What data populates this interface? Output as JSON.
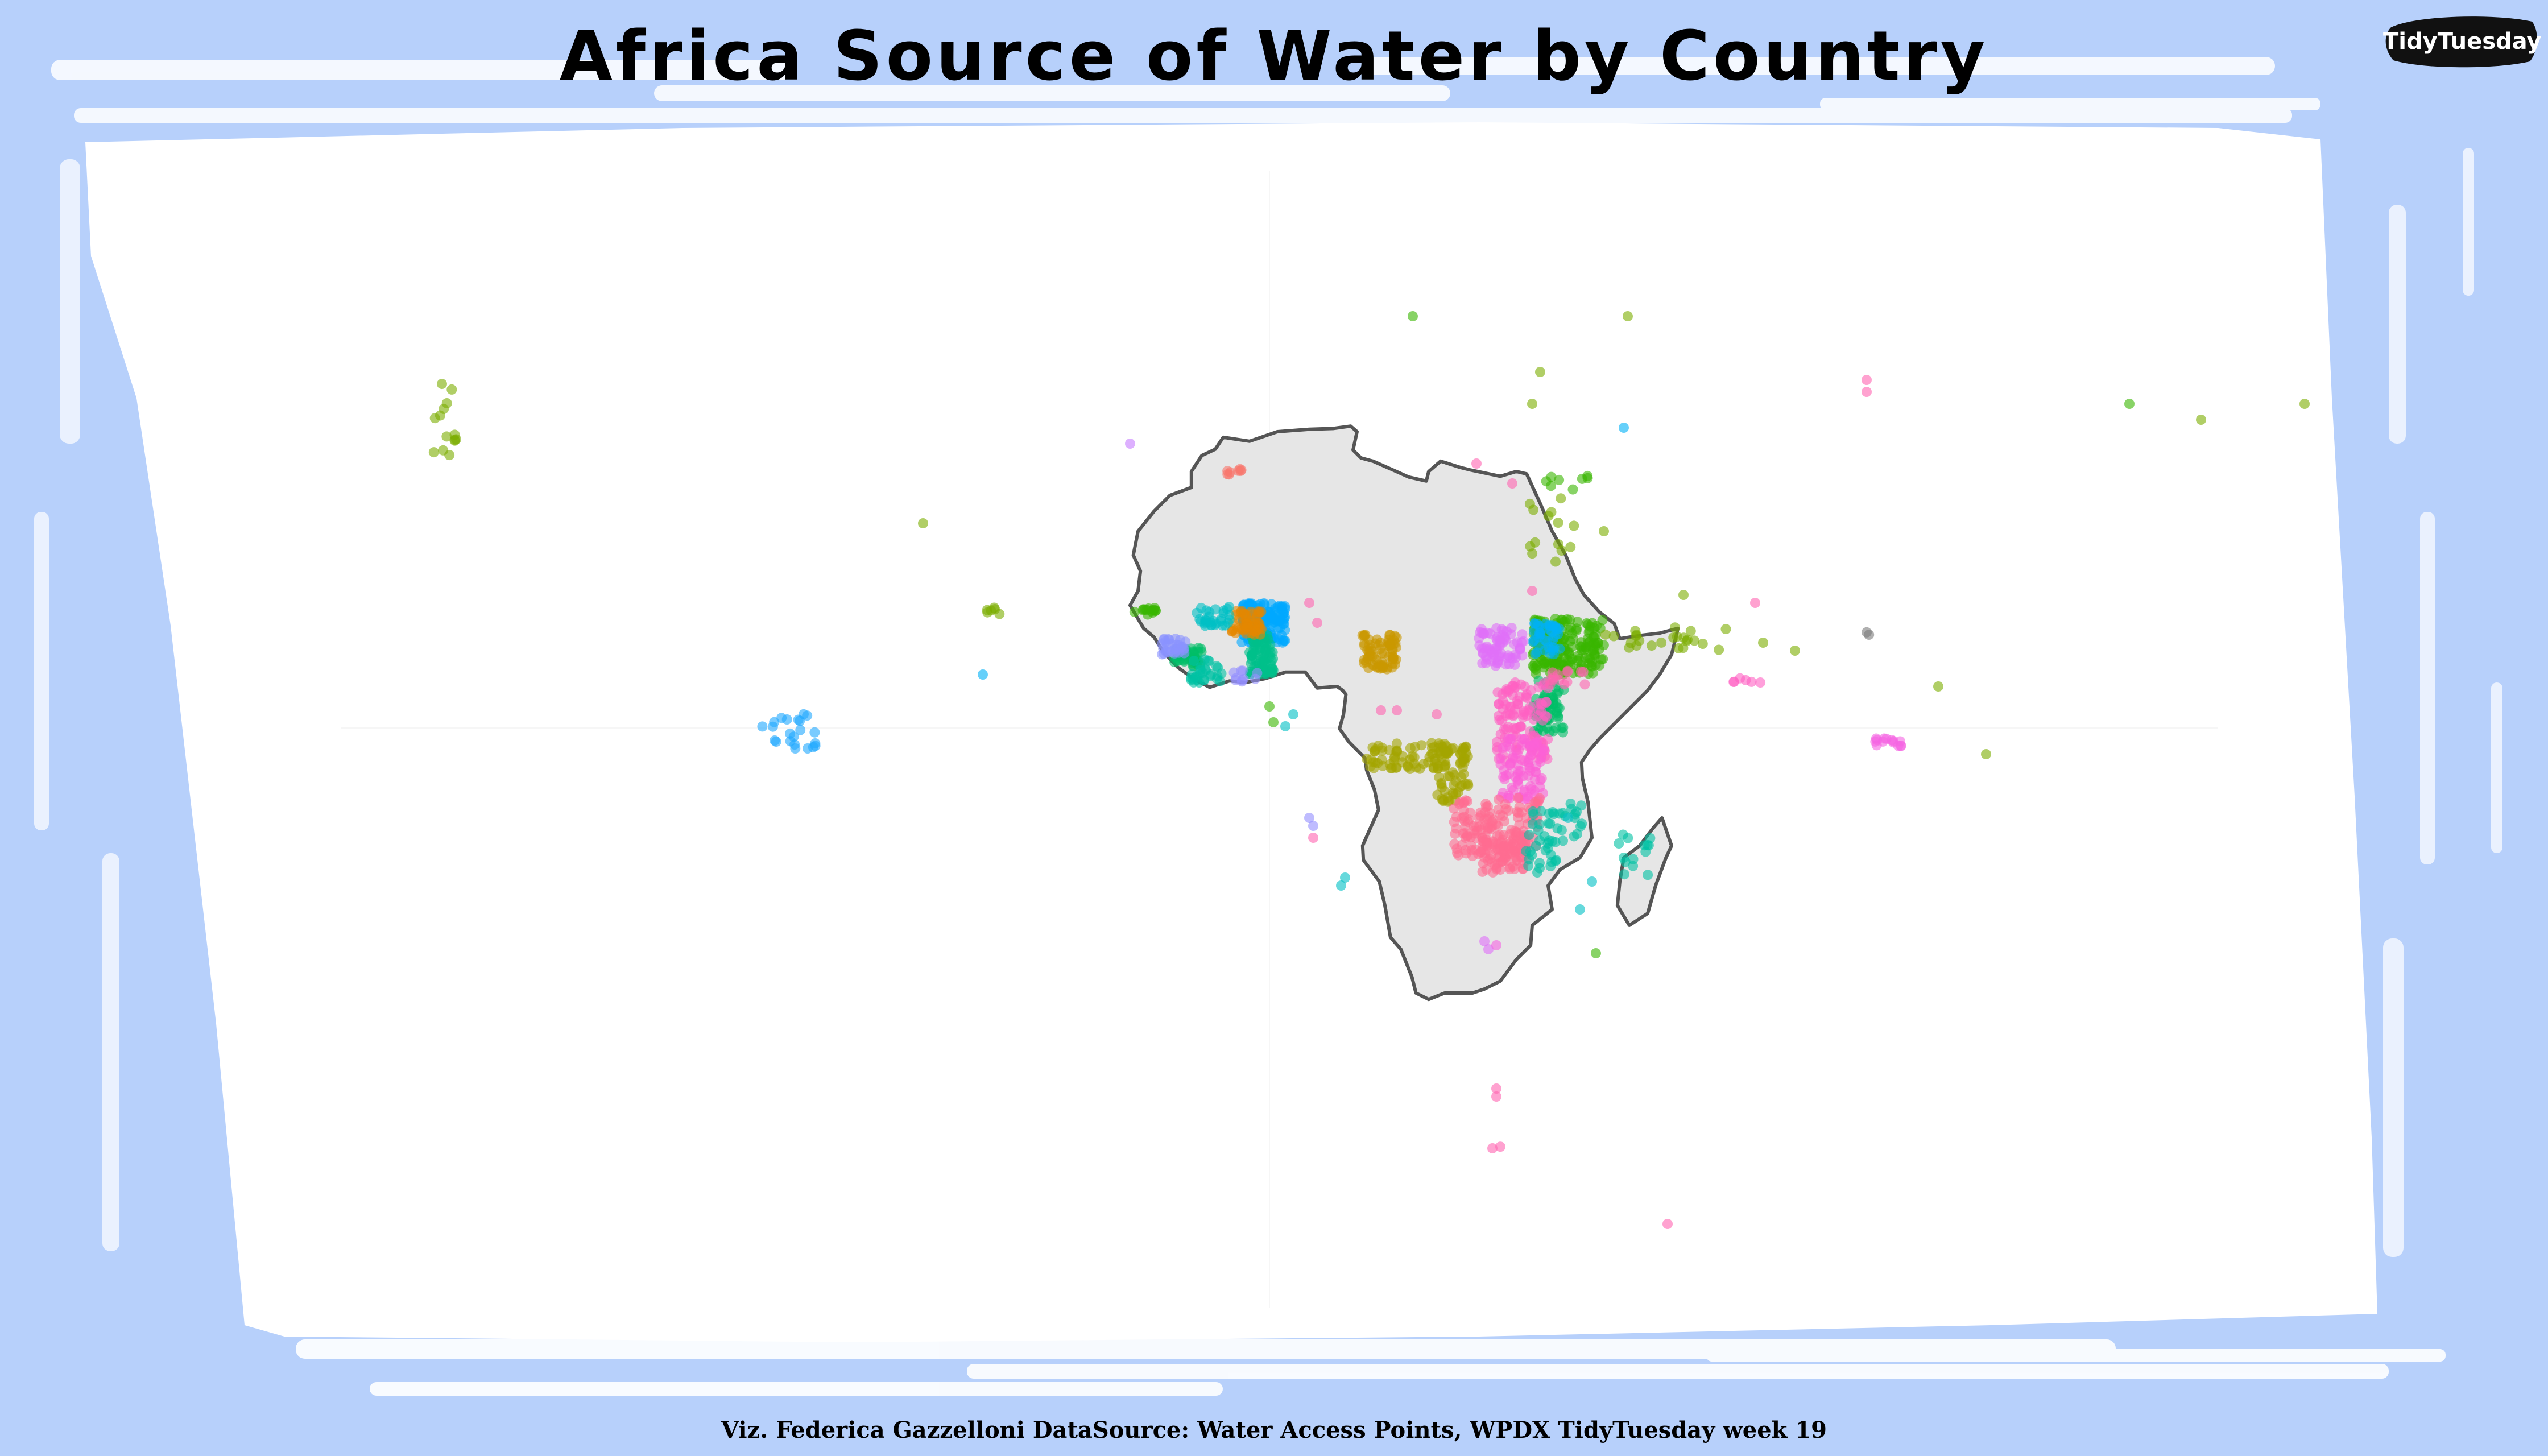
{
  "title": "Africa Source of Water by Country",
  "badge": {
    "label": "TidyTuesday"
  },
  "caption": "Viz. Federica Gazzelloni DataSource: Water Access Points, WPDX TidyTuesday week 19",
  "colors": {
    "page_background": "#b7d0fb",
    "map_panel": "#ffffff",
    "land_fill": "#e6e6e6",
    "land_outline": "#555555",
    "badge_fill": "#111111"
  },
  "chart_data": {
    "type": "scatter",
    "subject": "water access points in Africa colored by country",
    "extent": {
      "lon": [
        -110,
        150
      ],
      "lat": [
        -55,
        55
      ]
    },
    "continent_outline_lonlat": [
      [
        -17.1,
        21.0
      ],
      [
        -16.5,
        24.0
      ],
      [
        -14.5,
        26.5
      ],
      [
        -12.5,
        28.5
      ],
      [
        -9.8,
        29.5
      ],
      [
        -9.8,
        31.5
      ],
      [
        -8.5,
        33.5
      ],
      [
        -6.8,
        34.3
      ],
      [
        -5.8,
        35.8
      ],
      [
        -2.5,
        35.3
      ],
      [
        1.0,
        36.5
      ],
      [
        5.0,
        36.8
      ],
      [
        8.0,
        36.9
      ],
      [
        10.2,
        37.2
      ],
      [
        11.0,
        36.5
      ],
      [
        10.5,
        34.2
      ],
      [
        11.5,
        33.2
      ],
      [
        13.0,
        32.8
      ],
      [
        15.5,
        31.7
      ],
      [
        17.5,
        30.8
      ],
      [
        19.7,
        30.3
      ],
      [
        20.0,
        31.5
      ],
      [
        21.5,
        32.8
      ],
      [
        24.0,
        32.0
      ],
      [
        25.2,
        31.7
      ],
      [
        29.0,
        30.9
      ],
      [
        31.0,
        31.5
      ],
      [
        32.3,
        31.2
      ],
      [
        34.0,
        27.5
      ],
      [
        35.5,
        24.0
      ],
      [
        37.2,
        21.0
      ],
      [
        38.4,
        18.0
      ],
      [
        39.5,
        16.0
      ],
      [
        41.5,
        13.8
      ],
      [
        43.3,
        12.4
      ],
      [
        44.0,
        10.5
      ],
      [
        46.5,
        10.9
      ],
      [
        49.0,
        11.2
      ],
      [
        51.3,
        11.8
      ],
      [
        51.0,
        10.5
      ],
      [
        50.5,
        8.5
      ],
      [
        49.0,
        6.0
      ],
      [
        47.5,
        4.0
      ],
      [
        45.5,
        2.0
      ],
      [
        43.5,
        0.0
      ],
      [
        41.5,
        -2.0
      ],
      [
        40.2,
        -3.5
      ],
      [
        39.2,
        -5.0
      ],
      [
        39.3,
        -7.0
      ],
      [
        40.0,
        -10.0
      ],
      [
        40.5,
        -14.5
      ],
      [
        39.0,
        -17.0
      ],
      [
        36.5,
        -18.5
      ],
      [
        35.0,
        -20.5
      ],
      [
        35.5,
        -23.5
      ],
      [
        33.0,
        -25.5
      ],
      [
        32.8,
        -28.0
      ],
      [
        31.0,
        -29.8
      ],
      [
        29.0,
        -32.5
      ],
      [
        27.0,
        -33.5
      ],
      [
        25.5,
        -34.0
      ],
      [
        22.0,
        -34.0
      ],
      [
        20.0,
        -34.8
      ],
      [
        18.4,
        -34.0
      ],
      [
        17.9,
        -32.0
      ],
      [
        16.5,
        -28.5
      ],
      [
        15.2,
        -27.0
      ],
      [
        14.5,
        -23.0
      ],
      [
        13.8,
        -20.0
      ],
      [
        11.8,
        -17.3
      ],
      [
        11.7,
        -15.5
      ],
      [
        12.8,
        -13.0
      ],
      [
        13.7,
        -11.0
      ],
      [
        13.2,
        -8.5
      ],
      [
        12.2,
        -6.0
      ],
      [
        12.0,
        -4.5
      ],
      [
        10.0,
        -2.5
      ],
      [
        8.8,
        -0.8
      ],
      [
        9.3,
        1.0
      ],
      [
        9.6,
        3.5
      ],
      [
        9.2,
        4.0
      ],
      [
        8.5,
        4.5
      ],
      [
        6.0,
        4.3
      ],
      [
        4.5,
        6.3
      ],
      [
        2.0,
        6.3
      ],
      [
        -0.5,
        5.5
      ],
      [
        -3.0,
        5.0
      ],
      [
        -5.0,
        5.2
      ],
      [
        -7.5,
        4.4
      ],
      [
        -9.3,
        5.3
      ],
      [
        -11.5,
        6.9
      ],
      [
        -13.3,
        8.8
      ],
      [
        -14.5,
        10.7
      ],
      [
        -15.8,
        11.8
      ],
      [
        -16.8,
        13.5
      ],
      [
        -17.5,
        14.7
      ],
      [
        -16.5,
        16.5
      ],
      [
        -16.2,
        19.0
      ],
      [
        -17.1,
        21.0
      ]
    ],
    "madagascar_outline_lonlat": [
      [
        49.3,
        -12.0
      ],
      [
        50.5,
        -15.5
      ],
      [
        49.8,
        -17.0
      ],
      [
        48.5,
        -20.5
      ],
      [
        47.5,
        -24.0
      ],
      [
        45.2,
        -25.5
      ],
      [
        43.7,
        -23.0
      ],
      [
        44.0,
        -20.0
      ],
      [
        44.5,
        -17.0
      ],
      [
        46.5,
        -15.5
      ],
      [
        48.0,
        -13.5
      ],
      [
        49.3,
        -12.0
      ]
    ],
    "clusters": [
      {
        "country_color": "#00a9ff",
        "lon": [
          -3.5,
          2.0
        ],
        "lat": [
          10.0,
          15.0
        ],
        "n": 140
      },
      {
        "country_color": "#00c08b",
        "lon": [
          -2.5,
          0.5
        ],
        "lat": [
          6.0,
          11.0
        ],
        "n": 80
      },
      {
        "country_color": "#e58700",
        "lon": [
          -5.0,
          -1.0
        ],
        "lat": [
          11.0,
          14.0
        ],
        "n": 50
      },
      {
        "country_color": "#00be67",
        "lon": [
          -12.0,
          -8.5
        ],
        "lat": [
          7.0,
          9.5
        ],
        "n": 40
      },
      {
        "country_color": "#8b93ff",
        "lon": [
          -13.5,
          -10.5
        ],
        "lat": [
          8.5,
          10.5
        ],
        "n": 30
      },
      {
        "country_color": "#00bfc4",
        "lon": [
          -9.5,
          -5.0
        ],
        "lat": [
          12.0,
          14.5
        ],
        "n": 30
      },
      {
        "country_color": "#39b600",
        "lon": [
          -17.0,
          -14.0
        ],
        "lat": [
          13.5,
          14.5
        ],
        "n": 14
      },
      {
        "country_color": "#c99800",
        "lon": [
          11.5,
          16.0
        ],
        "lat": [
          6.5,
          11.0
        ],
        "n": 70
      },
      {
        "country_color": "#a3a500",
        "lon": [
          12.0,
          22.0
        ],
        "lat": [
          -6.0,
          -2.5
        ],
        "n": 60
      },
      {
        "country_color": "#a3a500",
        "lon": [
          21.0,
          25.0
        ],
        "lat": [
          -10.0,
          -3.0
        ],
        "n": 70
      },
      {
        "country_color": "#39b600",
        "lon": [
          33.0,
          42.0
        ],
        "lat": [
          6.0,
          13.0
        ],
        "n": 180
      },
      {
        "country_color": "#00b0f6",
        "lon": [
          33.0,
          36.5
        ],
        "lat": [
          8.5,
          12.5
        ],
        "n": 40
      },
      {
        "country_color": "#df70f8",
        "lon": [
          26.0,
          32.0
        ],
        "lat": [
          7.0,
          12.0
        ],
        "n": 70
      },
      {
        "country_color": "#00be67",
        "lon": [
          33.0,
          37.0
        ],
        "lat": [
          -1.5,
          5.5
        ],
        "n": 60
      },
      {
        "country_color": "#ff61c3",
        "lon": [
          28.5,
          35.0
        ],
        "lat": [
          -5.0,
          5.0
        ],
        "n": 110
      },
      {
        "country_color": "#fb61d7",
        "lon": [
          29.0,
          34.5
        ],
        "lat": [
          -10.0,
          -2.0
        ],
        "n": 80
      },
      {
        "country_color": "#ff6c91",
        "lon": [
          23.0,
          34.0
        ],
        "lat": [
          -17.0,
          -9.5
        ],
        "n": 150
      },
      {
        "country_color": "#ff6c91",
        "lon": [
          26.5,
          32.5
        ],
        "lat": [
          -19.0,
          -15.0
        ],
        "n": 60
      },
      {
        "country_color": "#00c1a3",
        "lon": [
          33.0,
          39.5
        ],
        "lat": [
          -15.0,
          -10.0
        ],
        "n": 30
      },
      {
        "country_color": "#00c1a3",
        "lon": [
          32.0,
          36.0
        ],
        "lat": [
          -19.0,
          -14.0
        ],
        "n": 20
      },
      {
        "country_color": "#00c1a3",
        "lon": [
          43.0,
          48.0
        ],
        "lat": [
          -20.0,
          -14.0
        ],
        "n": 14
      },
      {
        "country_color": "#00c1a3",
        "lon": [
          -10.0,
          -6.0
        ],
        "lat": [
          5.0,
          8.0
        ],
        "n": 30
      },
      {
        "country_color": "#9590ff",
        "lon": [
          -5.0,
          -1.5
        ],
        "lat": [
          5.0,
          6.5
        ],
        "n": 10
      },
      {
        "country_color": "#f8766d",
        "lon": [
          -5.5,
          -3.5
        ],
        "lat": [
          31.0,
          32.0
        ],
        "n": 8
      },
      {
        "country_color": "#1fa8ff",
        "lon": [
          -64.0,
          -57.0
        ],
        "lat": [
          -3.5,
          2.0
        ],
        "n": 22
      },
      {
        "country_color": "#7cae00",
        "lon": [
          -105.0,
          -102.0
        ],
        "lat": [
          33.0,
          43.0
        ],
        "n": 14
      },
      {
        "country_color": "#7cae00",
        "lon": [
          42.0,
          58.0
        ],
        "lat": [
          9.0,
          12.0
        ],
        "n": 24
      },
      {
        "country_color": "#7cae00",
        "lon": [
          32.0,
          40.0
        ],
        "lat": [
          20.0,
          29.0
        ],
        "n": 14
      },
      {
        "country_color": "#39b600",
        "lon": [
          34.5,
          40.0
        ],
        "lat": [
          29.0,
          31.0
        ],
        "n": 8
      },
      {
        "country_color": "#ff64b0",
        "lon": [
          35.0,
          40.0
        ],
        "lat": [
          4.5,
          6.5
        ],
        "n": 14
      },
      {
        "country_color": "#f564e3",
        "lon": [
          75.5,
          80.0
        ],
        "lat": [
          -3.0,
          -2.0
        ],
        "n": 14
      },
      {
        "country_color": "#ff61c3",
        "lon": [
          57.0,
          62.0
        ],
        "lat": [
          5.0,
          5.8
        ],
        "n": 6
      },
      {
        "country_color": "#7cae00",
        "lon": [
          -35.5,
          -33.5
        ],
        "lat": [
          13.5,
          14.5
        ],
        "n": 6
      }
    ],
    "outliers": [
      {
        "color": "#39b600",
        "lon": 18.0,
        "lat": 51.0
      },
      {
        "color": "#7cae00",
        "lon": 45.0,
        "lat": 51.0
      },
      {
        "color": "#7cae00",
        "lon": 34.0,
        "lat": 44.0
      },
      {
        "color": "#7cae00",
        "lon": 33.0,
        "lat": 40.0
      },
      {
        "color": "#00b0f6",
        "lon": 44.5,
        "lat": 37.0
      },
      {
        "color": "#ff64b0",
        "lon": 75.0,
        "lat": 43.0
      },
      {
        "color": "#ff64b0",
        "lon": 75.0,
        "lat": 41.5
      },
      {
        "color": "#39b600",
        "lon": 108.0,
        "lat": 40.0
      },
      {
        "color": "#7cae00",
        "lon": 117.0,
        "lat": 38.0
      },
      {
        "color": "#7cae00",
        "lon": 130.0,
        "lat": 40.0
      },
      {
        "color": "#7cae00",
        "lon": -43.5,
        "lat": 25.0
      },
      {
        "color": "#00b0f6",
        "lon": -36.0,
        "lat": 6.0
      },
      {
        "color": "#7cae00",
        "lon": 42.0,
        "lat": 24.0
      },
      {
        "color": "#ff64b0",
        "lon": 30.5,
        "lat": 30.0
      },
      {
        "color": "#7cae00",
        "lon": 52.0,
        "lat": 16.0
      },
      {
        "color": "#ff64b0",
        "lon": 61.0,
        "lat": 15.0
      },
      {
        "color": "#7cae00",
        "lon": 62.0,
        "lat": 10.0
      },
      {
        "color": "#7cae00",
        "lon": 66.0,
        "lat": 9.0
      },
      {
        "color": "#7cae00",
        "lon": 84.0,
        "lat": 4.5
      },
      {
        "color": "#7cae00",
        "lon": 90.0,
        "lat": -4.0
      },
      {
        "color": "#39b600",
        "lon": 41.0,
        "lat": -29.0
      },
      {
        "color": "#00bfc4",
        "lon": 40.5,
        "lat": -20.0
      },
      {
        "color": "#ff64b0",
        "lon": 28.5,
        "lat": -46.0
      },
      {
        "color": "#ff64b0",
        "lon": 28.5,
        "lat": -47.0
      },
      {
        "color": "#ff64b0",
        "lon": 28.0,
        "lat": -53.5
      },
      {
        "color": "#ff64b0",
        "lon": 29.0,
        "lat": -53.3
      },
      {
        "color": "#ff64b0",
        "lon": 50.0,
        "lat": -63.0
      },
      {
        "color": "#7b7b7b",
        "lon": 75.0,
        "lat": 11.3
      },
      {
        "color": "#7b7b7b",
        "lon": 75.3,
        "lat": 11.0
      },
      {
        "color": "#c77cff",
        "lon": -17.5,
        "lat": 35.0
      },
      {
        "color": "#ff64b0",
        "lon": 26.0,
        "lat": 32.5
      },
      {
        "color": "#ff64b0",
        "lon": 33.0,
        "lat": 16.5
      },
      {
        "color": "#ff64b0",
        "lon": 5.0,
        "lat": 15.0
      },
      {
        "color": "#ff64b0",
        "lon": 6.0,
        "lat": 12.5
      },
      {
        "color": "#00bfc4",
        "lon": 3.0,
        "lat": 1.0
      },
      {
        "color": "#39b600",
        "lon": 0.0,
        "lat": 2.0
      },
      {
        "color": "#39b600",
        "lon": 0.5,
        "lat": 0.0
      },
      {
        "color": "#00bfc4",
        "lon": 2.0,
        "lat": -0.5
      },
      {
        "color": "#9590ff",
        "lon": 5.0,
        "lat": -12.0
      },
      {
        "color": "#9590ff",
        "lon": 5.5,
        "lat": -13.0
      },
      {
        "color": "#ff64b0",
        "lon": 5.5,
        "lat": -14.5
      },
      {
        "color": "#00bfc4",
        "lon": 9.5,
        "lat": -19.5
      },
      {
        "color": "#00bfc4",
        "lon": 9.0,
        "lat": -20.5
      },
      {
        "color": "#ff64b0",
        "lon": 14.0,
        "lat": 1.5
      },
      {
        "color": "#ff64b0",
        "lon": 16.0,
        "lat": 1.5
      },
      {
        "color": "#ff64b0",
        "lon": 21.0,
        "lat": 1.0
      },
      {
        "color": "#00bfc4",
        "lon": 39.0,
        "lat": -23.5
      },
      {
        "color": "#00bfc4",
        "lon": 37.5,
        "lat": -12.0
      },
      {
        "color": "#df70f8",
        "lon": 27.0,
        "lat": -27.5
      },
      {
        "color": "#df70f8",
        "lon": 27.5,
        "lat": -28.5
      },
      {
        "color": "#f564e3",
        "lon": 28.5,
        "lat": -28.0
      }
    ]
  }
}
